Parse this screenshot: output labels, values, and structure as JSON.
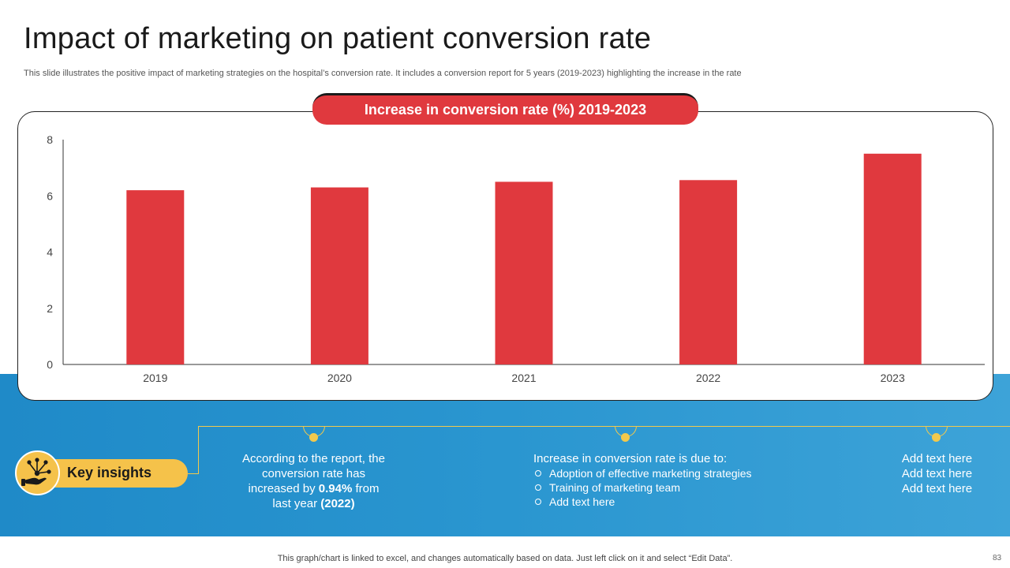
{
  "slide": {
    "title": "Impact of marketing on patient conversion rate",
    "subtitle": "This slide illustrates the positive impact of marketing strategies on the hospital’s conversion rate. It includes a conversion report for 5 years (2019-2023) highlighting the increase in the rate",
    "footer": "This graph/chart is linked to excel, and changes automatically based on data. Just left click on it and select “Edit Data”.",
    "page_number": "83"
  },
  "chart_data": {
    "type": "bar",
    "title": "Increase in conversion rate (%) 2019-2023",
    "categories": [
      "2019",
      "2020",
      "2021",
      "2022",
      "2023"
    ],
    "values": [
      6.2,
      6.3,
      6.5,
      6.56,
      7.5
    ],
    "ylim": [
      0,
      8
    ],
    "yticks": [
      "0",
      "2",
      "4",
      "6",
      "8"
    ],
    "xlabel": "",
    "ylabel": "",
    "grid": false,
    "bar_color": "#e0393e"
  },
  "insights": {
    "label": "Key insights",
    "icon": "hand-network-icon",
    "box1": {
      "line1": "According to the report, the",
      "line2": "conversion rate has",
      "line3_pre": "increased by ",
      "line3_bold": "0.94%",
      "line3_post": " from",
      "line4_pre": "last year ",
      "line4_bold": "(2022)"
    },
    "box2": {
      "heading": "Increase in conversion rate is due to:",
      "bullets": [
        "Adoption of effective marketing strategies",
        "Training of marketing team",
        "Add text here"
      ]
    },
    "box3": {
      "lines": [
        "Add text here",
        "Add text here",
        "Add text here"
      ]
    }
  },
  "colors": {
    "accent_red": "#e0393e",
    "accent_yellow": "#f5c24a",
    "band_blue": "#2a96d0"
  }
}
